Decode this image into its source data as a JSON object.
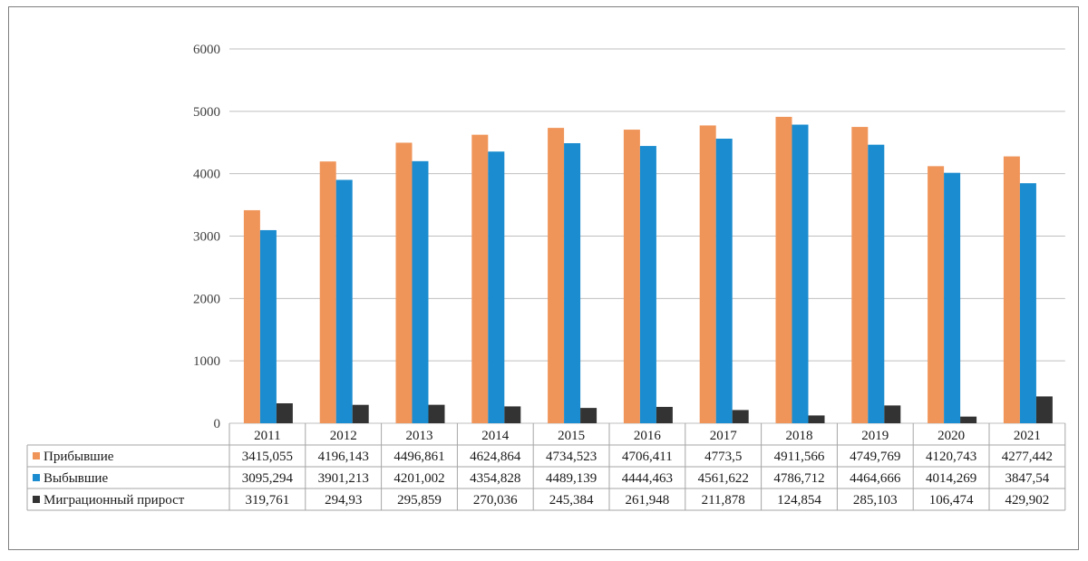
{
  "chart_data": {
    "type": "bar",
    "categories": [
      "2011",
      "2012",
      "2013",
      "2014",
      "2015",
      "2016",
      "2017",
      "2018",
      "2019",
      "2020",
      "2021"
    ],
    "series": [
      {
        "name": "Прибывшие",
        "color": "#f0955a",
        "values": [
          3415.055,
          4196.143,
          4496.861,
          4624.864,
          4734.523,
          4706.411,
          4773.5,
          4911.566,
          4749.769,
          4120.743,
          4277.442
        ],
        "labels": [
          "3415,055",
          "4196,143",
          "4496,861",
          "4624,864",
          "4734,523",
          "4706,411",
          "4773,5",
          "4911,566",
          "4749,769",
          "4120,743",
          "4277,442"
        ]
      },
      {
        "name": "Выбывшие",
        "color": "#1a8ccf",
        "values": [
          3095.294,
          3901.213,
          4201.002,
          4354.828,
          4489.139,
          4444.463,
          4561.622,
          4786.712,
          4464.666,
          4014.269,
          3847.54
        ],
        "labels": [
          "3095,294",
          "3901,213",
          "4201,002",
          "4354,828",
          "4489,139",
          "4444,463",
          "4561,622",
          "4786,712",
          "4464,666",
          "4014,269",
          "3847,54"
        ]
      },
      {
        "name": "Миграционный прирост",
        "color": "#333333",
        "values": [
          319.761,
          294.93,
          295.859,
          270.036,
          245.384,
          261.948,
          211.878,
          124.854,
          285.103,
          106.474,
          429.902
        ],
        "labels": [
          "319,761",
          "294,93",
          "295,859",
          "270,036",
          "245,384",
          "261,948",
          "211,878",
          "124,854",
          "285,103",
          "106,474",
          "429,902"
        ]
      }
    ],
    "ylim": [
      0,
      6000
    ],
    "yticks": [
      "0",
      "1000",
      "2000",
      "3000",
      "4000",
      "5000",
      "6000"
    ],
    "grid": true,
    "legend": "data-table"
  }
}
